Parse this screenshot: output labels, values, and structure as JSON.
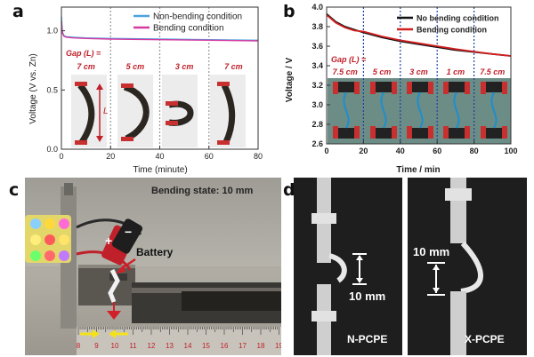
{
  "panel_labels": [
    "a",
    "b",
    "c",
    "d"
  ],
  "chart_data": [
    {
      "type": "line",
      "panel": "a",
      "xlabel": "Time (minute)",
      "ylabel": "Voltage (V vs. Zn)",
      "xlim": [
        0,
        80
      ],
      "ylim": [
        0.0,
        1.2
      ],
      "xticks": [
        "0",
        "20",
        "40",
        "60",
        "80"
      ],
      "yticks": [
        "0.0",
        "0.5",
        "1.0"
      ],
      "legend_position": "top-right",
      "series": [
        {
          "name": "Non-bending condition",
          "color": "#4aa3df",
          "x": [
            0,
            0.4,
            1,
            2,
            5,
            10,
            20,
            40,
            60,
            80
          ],
          "y": [
            1.12,
            0.99,
            0.96,
            0.95,
            0.945,
            0.94,
            0.935,
            0.93,
            0.925,
            0.92
          ]
        },
        {
          "name": "Bending condition",
          "color": "#d63aa0",
          "x": [
            0,
            0.4,
            1,
            2,
            5,
            10,
            20,
            40,
            60,
            80
          ],
          "y": [
            1.08,
            0.98,
            0.955,
            0.945,
            0.94,
            0.935,
            0.93,
            0.925,
            0.92,
            0.915
          ]
        }
      ],
      "gap_title": "Gap (L) =",
      "gap_labels": [
        "7 cm",
        "5 cm",
        "3 cm",
        "7 cm"
      ],
      "gap_boundaries": [
        20,
        40,
        60
      ],
      "annotation": "L",
      "insets_present": true
    },
    {
      "type": "line",
      "panel": "b",
      "xlabel": "Time / min",
      "ylabel": "Voltage / V",
      "xlim": [
        0,
        100
      ],
      "ylim": [
        2.6,
        4.0
      ],
      "xticks": [
        "0",
        "20",
        "40",
        "60",
        "80",
        "100"
      ],
      "yticks": [
        "2.6",
        "2.8",
        "3.0",
        "3.2",
        "3.4",
        "3.6",
        "3.8",
        "4.0"
      ],
      "legend_position": "top-right",
      "series": [
        {
          "name": "No bending condition",
          "color": "#111111",
          "x": [
            0,
            5,
            10,
            15,
            20,
            30,
            40,
            50,
            60,
            70,
            80,
            90,
            100
          ],
          "y": [
            3.93,
            3.85,
            3.8,
            3.77,
            3.74,
            3.69,
            3.65,
            3.62,
            3.59,
            3.56,
            3.54,
            3.52,
            3.5
          ]
        },
        {
          "name": "Bending condition",
          "color": "#d42020",
          "x": [
            0,
            5,
            10,
            15,
            20,
            30,
            40,
            50,
            60,
            70,
            80,
            90,
            100
          ],
          "y": [
            3.92,
            3.84,
            3.79,
            3.76,
            3.75,
            3.7,
            3.66,
            3.63,
            3.6,
            3.57,
            3.545,
            3.52,
            3.5
          ]
        }
      ],
      "gap_title": "Gap (L) =",
      "gap_labels": [
        "7.5 cm",
        "5 cm",
        "3 cm",
        "1 cm",
        "7.5 cm"
      ],
      "gap_boundaries": [
        20,
        40,
        60,
        80
      ],
      "insets_present": true
    }
  ],
  "photo_c": {
    "bending_state": "Bending state: 10 mm",
    "battery_label": "Battery",
    "plus_sign": "+",
    "minus_sign": "−",
    "ruler_numbers": [
      "8",
      "9",
      "10",
      "11",
      "12",
      "13",
      "14",
      "15",
      "16",
      "17",
      "18",
      "19"
    ]
  },
  "photo_d": {
    "left_label": "N-PCPE",
    "left_gap": "10 mm",
    "right_label": "X-PCPE",
    "right_gap": "10 mm"
  }
}
